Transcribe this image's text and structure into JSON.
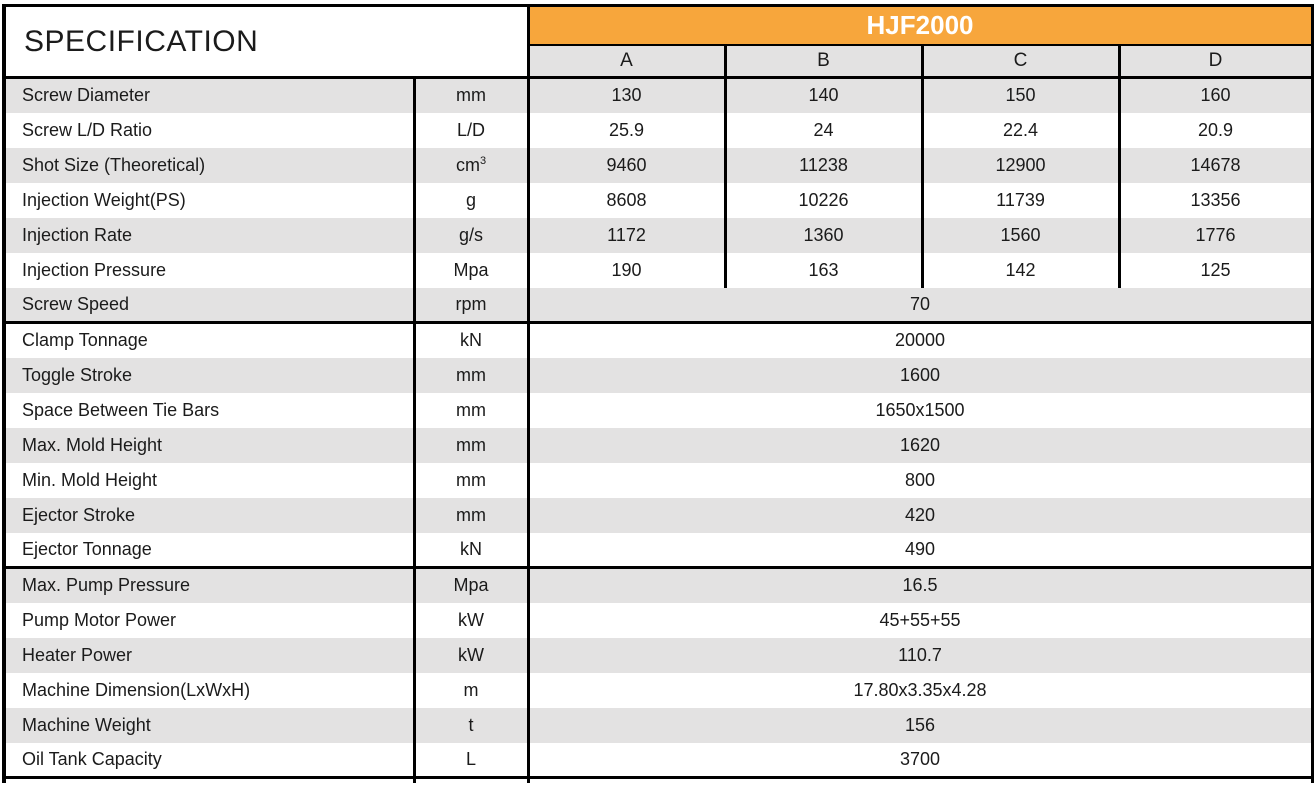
{
  "title": "SPECIFICATION",
  "model": "HJF2000",
  "column_headers": [
    "A",
    "B",
    "C",
    "D"
  ],
  "colors": {
    "accent_orange": "#F7A63C",
    "row_gray": "#E3E2E2",
    "border_black": "#000000"
  },
  "sections": [
    {
      "rows": [
        {
          "label": "Screw Diameter",
          "unit": "mm",
          "values": [
            "130",
            "140",
            "150",
            "160"
          ]
        },
        {
          "label": "Screw L/D Ratio",
          "unit": "L/D",
          "values": [
            "25.9",
            "24",
            "22.4",
            "20.9"
          ]
        },
        {
          "label": "Shot Size (Theoretical)",
          "unit": "cm",
          "unit_superscript": "3",
          "values": [
            "9460",
            "11238",
            "12900",
            "14678"
          ]
        },
        {
          "label": "Injection Weight(PS)",
          "unit": "g",
          "values": [
            "8608",
            "10226",
            "11739",
            "13356"
          ]
        },
        {
          "label": "Injection Rate",
          "unit": "g/s",
          "values": [
            "1172",
            "1360",
            "1560",
            "1776"
          ]
        },
        {
          "label": "Injection Pressure",
          "unit": "Mpa",
          "values": [
            "190",
            "163",
            "142",
            "125"
          ]
        },
        {
          "label": "Screw Speed",
          "unit": "rpm",
          "merged_value": "70"
        }
      ]
    },
    {
      "rows": [
        {
          "label": "Clamp Tonnage",
          "unit": "kN",
          "merged_value": "20000"
        },
        {
          "label": "Toggle Stroke",
          "unit": "mm",
          "merged_value": "1600"
        },
        {
          "label": "Space Between Tie Bars",
          "unit": "mm",
          "merged_value": "1650x1500"
        },
        {
          "label": "Max. Mold Height",
          "unit": "mm",
          "merged_value": "1620"
        },
        {
          "label": "Min. Mold Height",
          "unit": "mm",
          "merged_value": "800"
        },
        {
          "label": "Ejector Stroke",
          "unit": "mm",
          "merged_value": "420"
        },
        {
          "label": "Ejector Tonnage",
          "unit": "kN",
          "merged_value": "490"
        }
      ]
    },
    {
      "rows": [
        {
          "label": "Max. Pump Pressure",
          "unit": "Mpa",
          "merged_value": "16.5"
        },
        {
          "label": "Pump Motor Power",
          "unit": "kW",
          "merged_value": "45+55+55"
        },
        {
          "label": "Heater Power",
          "unit": "kW",
          "merged_value": "110.7"
        },
        {
          "label": "Machine Dimension(LxWxH)",
          "unit": "m",
          "merged_value": "17.80x3.35x4.28"
        },
        {
          "label": "Machine Weight",
          "unit": "t",
          "merged_value": "156"
        },
        {
          "label": "Oil Tank Capacity",
          "unit": "L",
          "merged_value": "3700"
        }
      ]
    }
  ]
}
